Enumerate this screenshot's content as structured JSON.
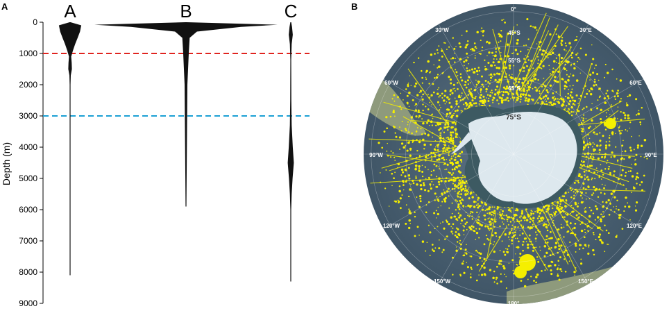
{
  "chart_data": [
    {
      "type": "violin",
      "panel_label": "A",
      "ylabel": "Depth (m)",
      "ylim": [
        0,
        9000
      ],
      "y_inverted": true,
      "yticks": [
        0,
        1000,
        2000,
        3000,
        4000,
        5000,
        6000,
        7000,
        8000,
        9000
      ],
      "reference_lines": [
        {
          "depth": 1000,
          "color": "#e0241f",
          "style": "dashed"
        },
        {
          "depth": 3000,
          "color": "#1aa0d4",
          "style": "dashed"
        }
      ],
      "series": [
        {
          "name": "A",
          "max_depth": 8100,
          "density": [
            [
              0,
              0.0
            ],
            [
              100,
              0.62
            ],
            [
              300,
              0.55
            ],
            [
              500,
              0.42
            ],
            [
              700,
              0.28
            ],
            [
              900,
              0.16
            ],
            [
              1100,
              0.06
            ],
            [
              1300,
              0.09
            ],
            [
              1500,
              0.1
            ],
            [
              1700,
              0.04
            ],
            [
              2000,
              0.02
            ],
            [
              3000,
              0.012
            ],
            [
              5000,
              0.008
            ],
            [
              8100,
              0.004
            ]
          ]
        },
        {
          "name": "B",
          "max_depth": 5900,
          "density": [
            [
              0,
              0.0
            ],
            [
              80,
              1.0
            ],
            [
              150,
              0.6
            ],
            [
              300,
              0.12
            ],
            [
              500,
              0.04
            ],
            [
              1000,
              0.03
            ],
            [
              2000,
              0.015
            ],
            [
              5900,
              0.004
            ]
          ]
        },
        {
          "name": "C",
          "max_depth": 8300,
          "density": [
            [
              0,
              0.0
            ],
            [
              150,
              0.07
            ],
            [
              400,
              0.11
            ],
            [
              700,
              0.05
            ],
            [
              1200,
              0.025
            ],
            [
              2500,
              0.03
            ],
            [
              3300,
              0.05
            ],
            [
              4000,
              0.11
            ],
            [
              4500,
              0.17
            ],
            [
              5000,
              0.1
            ],
            [
              5500,
              0.05
            ],
            [
              6000,
              0.02
            ],
            [
              8300,
              0.004
            ]
          ]
        }
      ]
    },
    {
      "type": "map",
      "panel_label": "B",
      "projection": "south-polar-stereographic",
      "point_color": "#f5ef00",
      "latitude_labels": [
        "45°S",
        "55°S",
        "65°S",
        "75°S"
      ],
      "longitude_labels": [
        "0°",
        "30°E",
        "60°E",
        "90°E",
        "120°E",
        "150°E",
        "180°",
        "150°W",
        "120°W",
        "90°W",
        "60°W",
        "30°W"
      ]
    }
  ]
}
